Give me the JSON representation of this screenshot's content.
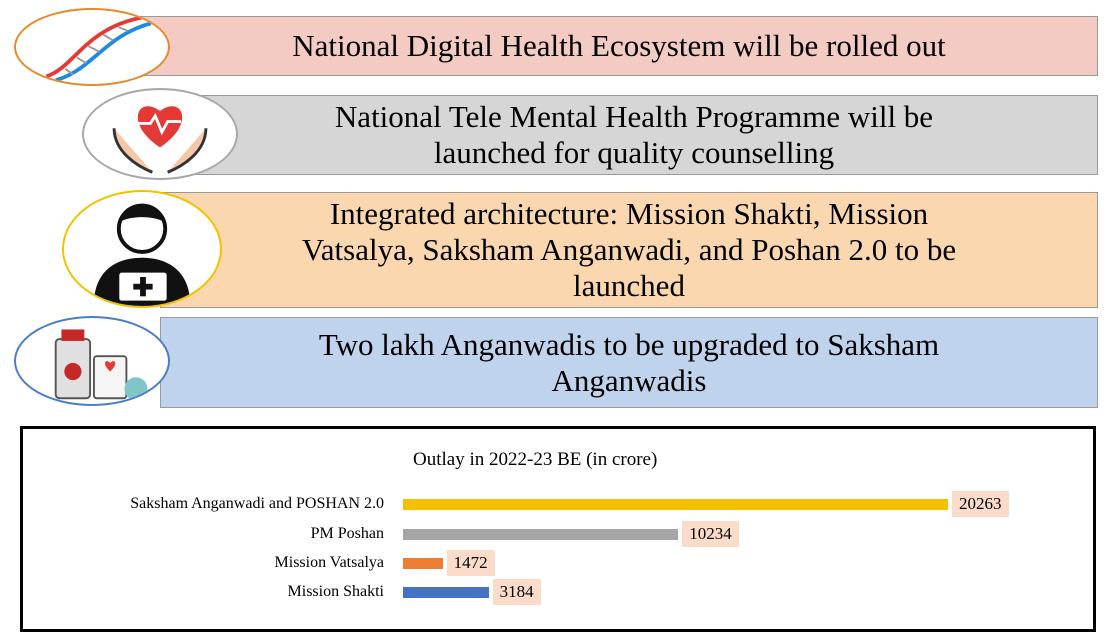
{
  "banners": [
    {
      "lines": [
        "National Digital Health Ecosystem will be rolled out"
      ],
      "icon": "dna-icon"
    },
    {
      "lines": [
        "National Tele Mental Health Programme will be",
        "launched for quality counselling"
      ],
      "icon": "heart-hands-icon"
    },
    {
      "lines": [
        "Integrated architecture: Mission Shakti, Mission",
        "Vatsalya, Saksham Anganwadi, and Poshan 2.0 to be",
        "launched"
      ],
      "icon": "doctor-icon"
    },
    {
      "lines": [
        "Two lakh Anganwadis to be upgraded to Saksham",
        "Anganwadis"
      ],
      "icon": "medical-supplies-icon"
    }
  ],
  "colors": {
    "banner1": "#f3cbc3",
    "banner2": "#d6d6d6",
    "banner3": "#fbd7b0",
    "banner4": "#c0d3ec",
    "label_bg": "#fbdccb"
  },
  "chart_data": {
    "type": "bar",
    "orientation": "horizontal",
    "title": "Outlay in 2022-23 BE (in crore)",
    "categories": [
      "Saksham Anganwadi and POSHAN 2.0",
      "PM Poshan",
      "Mission Vatsalya",
      "Mission Shakti"
    ],
    "values": [
      20263,
      10234,
      1472,
      3184
    ],
    "bar_colors": [
      "#f5c000",
      "#a5a5a5",
      "#ed7d31",
      "#4472c4"
    ],
    "xlim": [
      0,
      20263
    ],
    "grid": false,
    "data_labels": true
  }
}
